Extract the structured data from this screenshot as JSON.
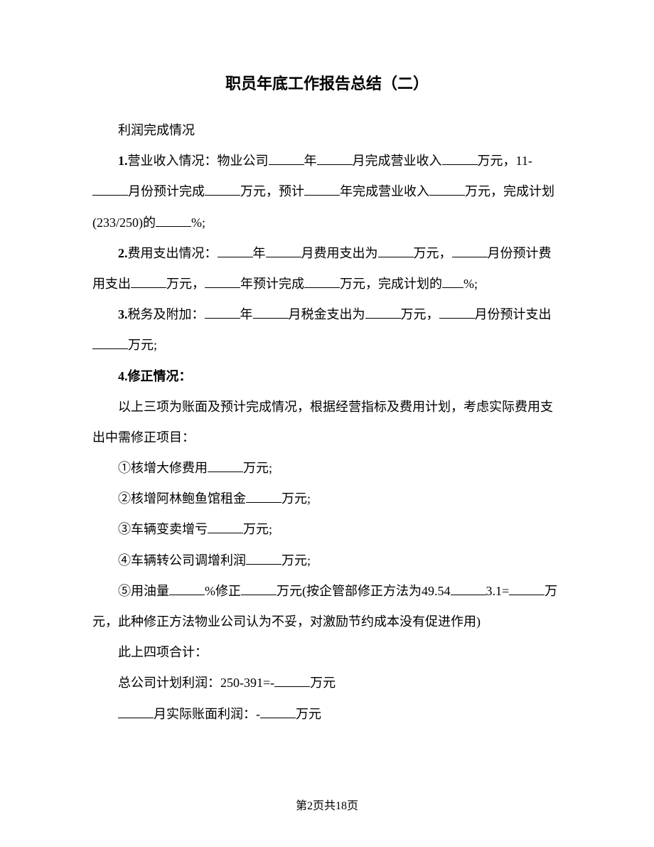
{
  "title": "职员年底工作报告总结（二）",
  "sections": {
    "intro": "利润完成情况",
    "item1_label": "1.",
    "item1_a": "营业收入情况：物业公司",
    "item1_b": "年",
    "item1_c": "月完成营业收入",
    "item1_d": "万元，11-",
    "item1_e": "月份预计完成",
    "item1_f": "万元，预计",
    "item1_g": "年完成营业收入",
    "item1_h": "万元，完成计划(233/250)的",
    "item1_i": "%;",
    "item2_label": "2.",
    "item2_a": "费用支出情况：",
    "item2_b": "年",
    "item2_c": "月费用支出为",
    "item2_d": "万元，",
    "item2_e": "月份预计费用支出",
    "item2_f": "万元，",
    "item2_g": "年预计完成",
    "item2_h": "万元，完成计划的",
    "item2_i": "%;",
    "item3_label": "3.",
    "item3_a": "税务及附加：",
    "item3_b": "年",
    "item3_c": "月税金支出为",
    "item3_d": "万元，",
    "item3_e": "月份预计支出",
    "item3_f": "万元;",
    "item4_label": "4.",
    "item4_title": "修正情况：",
    "item4_intro": "以上三项为账面及预计完成情况，根据经营指标及费用计划，考虑实际费用支出中需修正项目：",
    "sub1_a": "①核增大修费用",
    "sub1_b": "万元;",
    "sub2_a": "②核增阿林鲍鱼馆租金",
    "sub2_b": "万元;",
    "sub3_a": "③车辆变卖增亏",
    "sub3_b": "万元;",
    "sub4_a": "④车辆转公司调增利润",
    "sub4_b": "万元;",
    "sub5_a": "⑤用油量",
    "sub5_b": "%修正",
    "sub5_c": "万元(按企管部修正方法为49.54",
    "sub5_d": "3.1=",
    "sub5_e": "万元，此种修正方法物业公司认为不妥，对激励节约成本没有促进作用)",
    "total": "此上四项合计：",
    "profit_a": "总公司计划利润：250-391=-",
    "profit_b": "万元",
    "actual_a": "月实际账面利润：-",
    "actual_b": "万元"
  },
  "footer": "第2页共18页"
}
